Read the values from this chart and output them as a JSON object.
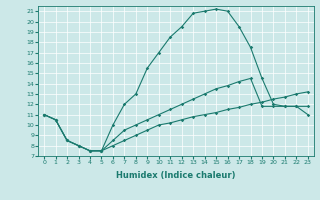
{
  "xlabel": "Humidex (Indice chaleur)",
  "bg_color": "#cce8e8",
  "line_color": "#1a7a6e",
  "xlim": [
    -0.5,
    23.5
  ],
  "ylim": [
    7,
    21.5
  ],
  "yticks": [
    7,
    8,
    9,
    10,
    11,
    12,
    13,
    14,
    15,
    16,
    17,
    18,
    19,
    20,
    21
  ],
  "xticks": [
    0,
    1,
    2,
    3,
    4,
    5,
    6,
    7,
    8,
    9,
    10,
    11,
    12,
    13,
    14,
    15,
    16,
    17,
    18,
    19,
    20,
    21,
    22,
    23
  ],
  "line1_x": [
    0,
    1,
    2,
    3,
    4,
    5,
    6,
    7,
    8,
    9,
    10,
    11,
    12,
    13,
    14,
    15,
    16,
    17,
    18,
    19,
    20,
    21,
    22,
    23
  ],
  "line1_y": [
    11.0,
    10.5,
    8.5,
    8.0,
    7.5,
    7.5,
    10.0,
    12.0,
    13.0,
    15.5,
    17.0,
    18.5,
    19.5,
    20.8,
    21.0,
    21.2,
    21.0,
    19.5,
    17.5,
    14.5,
    12.0,
    11.8,
    11.8,
    11.0
  ],
  "line2_x": [
    0,
    1,
    2,
    3,
    4,
    5,
    6,
    7,
    8,
    9,
    10,
    11,
    12,
    13,
    14,
    15,
    16,
    17,
    18,
    19,
    20,
    21,
    22,
    23
  ],
  "line2_y": [
    11.0,
    10.5,
    8.5,
    8.0,
    7.5,
    7.5,
    8.5,
    9.5,
    10.0,
    10.5,
    11.0,
    11.5,
    12.0,
    12.5,
    13.0,
    13.5,
    13.8,
    14.2,
    14.5,
    11.8,
    11.8,
    11.8,
    11.8,
    11.8
  ],
  "line3_x": [
    0,
    1,
    2,
    3,
    4,
    5,
    6,
    7,
    8,
    9,
    10,
    11,
    12,
    13,
    14,
    15,
    16,
    17,
    18,
    19,
    20,
    21,
    22,
    23
  ],
  "line3_y": [
    11.0,
    10.5,
    8.5,
    8.0,
    7.5,
    7.5,
    8.0,
    8.5,
    9.0,
    9.5,
    10.0,
    10.2,
    10.5,
    10.8,
    11.0,
    11.2,
    11.5,
    11.7,
    12.0,
    12.2,
    12.5,
    12.7,
    13.0,
    13.2
  ],
  "xlabel_fontsize": 6,
  "tick_fontsize": 4.5,
  "linewidth": 0.8,
  "markersize": 1.8
}
